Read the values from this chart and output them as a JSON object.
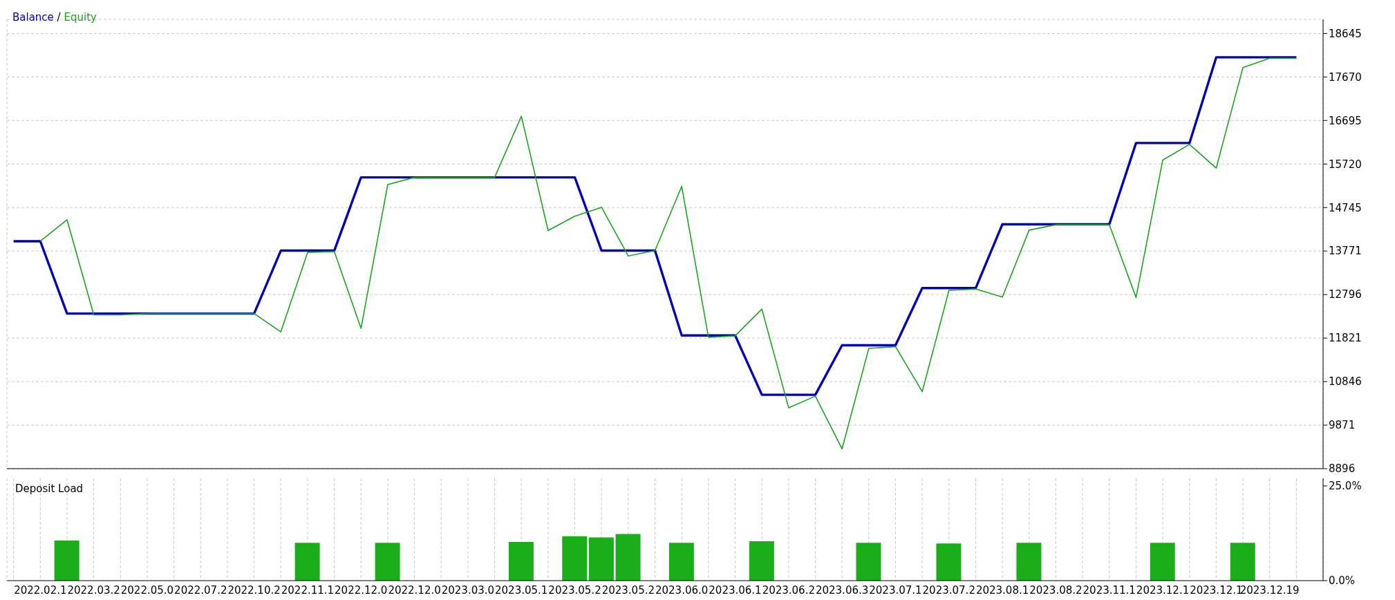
{
  "chart_data": [
    {
      "type": "line",
      "legend": "top left",
      "grid": true,
      "tick_labels": "y",
      "categories": [
        null,
        "2022.02.1",
        null,
        "2022.03.2",
        null,
        "2022.05.0",
        null,
        "2022.07.2",
        null,
        "2022.10.2",
        null,
        "2022.11.1",
        null,
        "2022.12.0",
        null,
        "2022.12.0",
        null,
        "2023.03.0",
        null,
        "2023.05.1",
        null,
        "2023.05.2",
        null,
        "2023.05.2",
        null,
        "2023.06.0",
        null,
        "2023.06.1",
        null,
        "2023.06.2",
        null,
        "2023.06.3",
        null,
        "2023.07.1",
        null,
        "2023.07.2",
        null,
        "2023.08.1",
        null,
        "2023.08.2",
        null,
        "2023.11.1",
        null,
        "2023.12.1",
        null,
        "2023.12.1",
        null,
        "2023.12.19",
        null
      ],
      "ylim": [
        8896,
        18960
      ],
      "yticks": [
        8896,
        9871,
        10846,
        11821,
        12796,
        13771,
        14745,
        15720,
        16695,
        17670,
        18645
      ],
      "series": [
        {
          "name": "Balance",
          "color": "#0000b4",
          "values": [
            13990,
            13990,
            12370,
            12370,
            12370,
            12370,
            12370,
            12370,
            12370,
            12370,
            13780,
            13780,
            13780,
            15420,
            15420,
            15420,
            15420,
            15420,
            15420,
            15420,
            15420,
            15420,
            13780,
            13780,
            13780,
            11880,
            11880,
            11880,
            10550,
            10550,
            10550,
            11660,
            11660,
            11660,
            12940,
            12940,
            12940,
            14370,
            14370,
            14370,
            14370,
            14370,
            16190,
            16190,
            16190,
            18110,
            18110,
            18110,
            18110
          ]
        },
        {
          "name": "Equity",
          "color": "#19a619",
          "values": [
            null,
            13990,
            14470,
            12340,
            12340,
            12370,
            12370,
            12370,
            12370,
            12370,
            11960,
            13740,
            13760,
            12040,
            15260,
            15420,
            15420,
            15420,
            15420,
            16790,
            14230,
            14550,
            14750,
            13660,
            13780,
            15220,
            11840,
            11870,
            12470,
            10260,
            10520,
            9340,
            11590,
            11630,
            10620,
            12890,
            12920,
            12740,
            14240,
            14360,
            14360,
            14360,
            12730,
            15810,
            16160,
            15630,
            17880,
            18090,
            18090
          ]
        }
      ],
      "annotations": [
        "/"
      ]
    },
    {
      "type": "bar",
      "title": "Deposit Load",
      "grid": "x",
      "categories": [
        null,
        "2022.02.1",
        null,
        "2022.03.2",
        null,
        "2022.05.0",
        null,
        "2022.07.2",
        null,
        "2022.10.2",
        null,
        "2022.11.1",
        null,
        "2022.12.0",
        null,
        "2022.12.0",
        null,
        "2023.03.0",
        null,
        "2023.05.1",
        null,
        "2023.05.2",
        null,
        "2023.05.2",
        null,
        "2023.06.0",
        null,
        "2023.06.1",
        null,
        "2023.06.2",
        null,
        "2023.06.3",
        null,
        "2023.07.1",
        null,
        "2023.07.2",
        null,
        "2023.08.1",
        null,
        "2023.08.2",
        null,
        "2023.11.1",
        null,
        "2023.12.1",
        null,
        "2023.12.1",
        null,
        "2023.12.19",
        null
      ],
      "ylim": [
        0,
        27
      ],
      "yticks": [
        {
          "value": 0,
          "label": "0.0%"
        },
        {
          "value": 25,
          "label": "25.0%"
        }
      ],
      "color": "#1aaf1a",
      "values": [
        null,
        null,
        10.6,
        null,
        null,
        null,
        null,
        null,
        null,
        null,
        null,
        10.0,
        null,
        null,
        10.0,
        null,
        null,
        null,
        null,
        10.2,
        null,
        11.7,
        11.4,
        12.3,
        null,
        10.0,
        null,
        null,
        10.4,
        null,
        null,
        null,
        10.0,
        null,
        null,
        9.8,
        null,
        null,
        10.0,
        null,
        null,
        null,
        null,
        10.0,
        null,
        null,
        10.0,
        null,
        null
      ]
    }
  ]
}
